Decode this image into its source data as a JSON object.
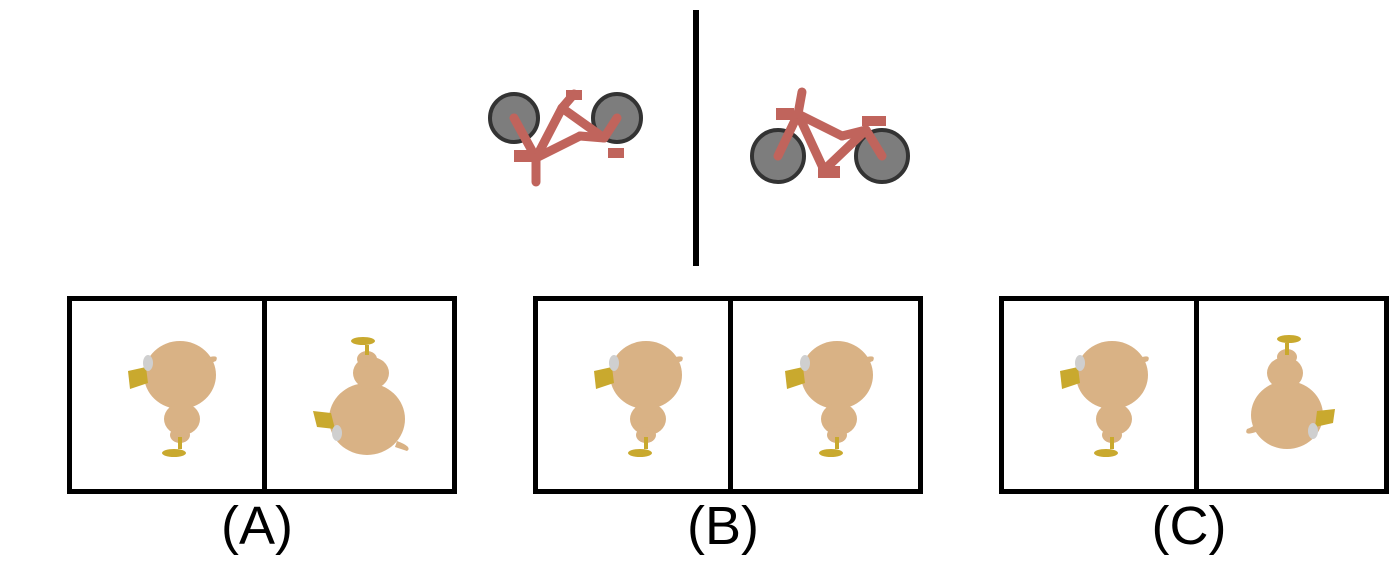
{
  "example": {
    "left_image_icon": "bicycle-rotated-icon",
    "right_image_icon": "bicycle-upright-icon",
    "bike_color": "#c0645c",
    "wheel_color": "#6e6e6e"
  },
  "options": [
    {
      "label": "(A)",
      "left_icon": "chick-side-icon",
      "right_icon": "chick-flipped-icon"
    },
    {
      "label": "(B)",
      "left_icon": "chick-side-icon",
      "right_icon": "chick-side-icon"
    },
    {
      "label": "(C)",
      "left_icon": "chick-side-icon",
      "right_icon": "chick-upside-down-mirrored-icon"
    }
  ],
  "chick_color": "#d9b285",
  "beak_color": "#c9a92e"
}
